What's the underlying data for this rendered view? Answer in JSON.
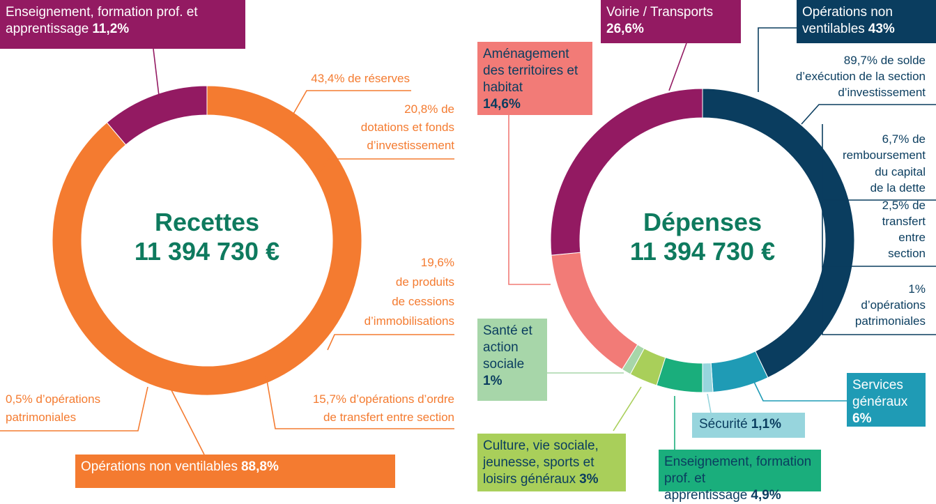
{
  "chart_data": [
    {
      "type": "donut",
      "title": "Recettes",
      "subtitle": "11 394 730 €",
      "categories": [
        "Opérations non ventilables",
        "Enseignement, formation prof. et apprentissage"
      ],
      "values": [
        88.8,
        11.2
      ],
      "value_labels": [
        "88,8%",
        "11,2%"
      ],
      "colors": [
        "#f47b30",
        "#931a62"
      ],
      "annotations": [
        [
          "43,4% de réserves"
        ],
        [
          "20,8% de",
          "dotations et fonds",
          "d’investissement"
        ],
        [
          "19,6%",
          "de produits",
          "de cessions",
          "d’immobilisations"
        ],
        [
          "15,7% d’opérations d’ordre",
          "de transfert entre section"
        ],
        [
          "0,5% d’opérations",
          "patrimoniales"
        ]
      ]
    },
    {
      "type": "donut",
      "title": "Dépenses",
      "subtitle": "11 394 730 €",
      "categories": [
        "Opérations non ventilables",
        "Services généraux",
        "Sécurité",
        "Enseignement, formation prof. et apprentissage",
        "Culture, vie sociale, jeunesse, sports et loisirs généraux",
        "Santé et action sociale",
        "Aménagement des territoires et habitat",
        "Voirie / Transports"
      ],
      "values": [
        43,
        6,
        1.1,
        4.9,
        3,
        1,
        14.6,
        26.6
      ],
      "value_labels": [
        "43%",
        "6%",
        "1,1%",
        "4,9%",
        "3%",
        "1%",
        "14,6%",
        "26,6%"
      ],
      "colors": [
        "#0a3d5f",
        "#1f9bb5",
        "#97d5dd",
        "#1aae7c",
        "#a9cf5a",
        "#a7d6a9",
        "#f27b77",
        "#931a62"
      ],
      "annotations": [
        [
          "89,7% de solde",
          "d’exécution de la section",
          "d’investissement"
        ],
        [
          "6,7% de",
          "remboursement",
          "du capital",
          "de la dette"
        ],
        [
          "2,5% de",
          "transfert",
          "entre",
          "section"
        ],
        [
          "1%",
          "d’opérations",
          "patrimoniales"
        ]
      ]
    }
  ]
}
